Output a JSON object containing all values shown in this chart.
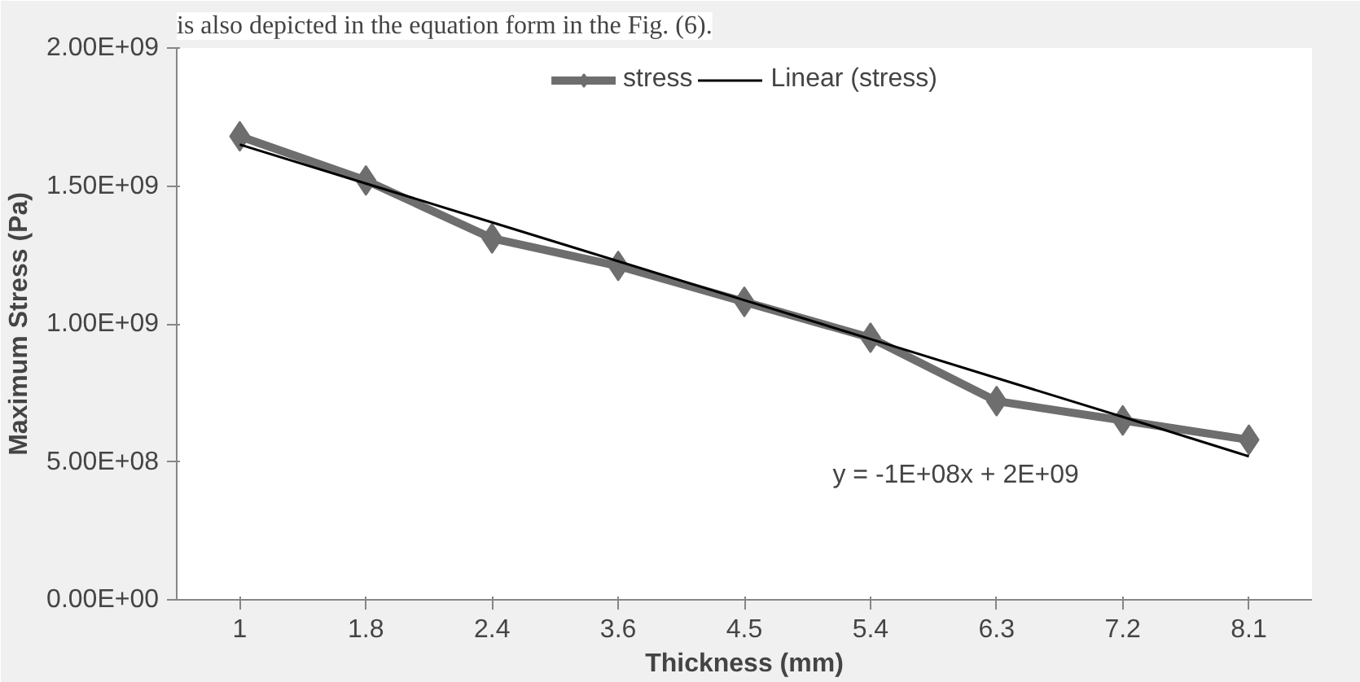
{
  "chart_data": {
    "type": "line",
    "xlabel": "Thickness (mm)",
    "ylabel": "Maximum Stress (Pa)",
    "categories": [
      "1",
      "1.8",
      "2.4",
      "3.6",
      "4.5",
      "5.4",
      "6.3",
      "7.2",
      "8.1"
    ],
    "series": [
      {
        "name": "stress",
        "color": "#6e6e6e",
        "marker": "diamond",
        "values": [
          1680000000,
          1520000000,
          1310000000,
          1210000000,
          1080000000,
          950000000,
          720000000,
          650000000,
          580000000
        ]
      },
      {
        "name": "Linear (stress)",
        "color": "#000000",
        "marker": "none",
        "values": [
          1650000000,
          1509000000,
          1368000000,
          1227000000,
          1086000000,
          945000000,
          804000000,
          663000000,
          520000000
        ]
      }
    ],
    "ylim": [
      0,
      2000000000
    ],
    "yticks": [
      {
        "value": 0,
        "label": "0.00E+00"
      },
      {
        "value": 500000000,
        "label": "5.00E+08"
      },
      {
        "value": 1000000000,
        "label": "1.00E+09"
      },
      {
        "value": 1500000000,
        "label": "1.50E+09"
      },
      {
        "value": 2000000000,
        "label": "2.00E+09"
      }
    ],
    "grid": false,
    "legend": "top",
    "annotations": [
      "is also depicted in the equation form in the Fig. (6).",
      "y = -1E+08x + 2E+09"
    ]
  }
}
